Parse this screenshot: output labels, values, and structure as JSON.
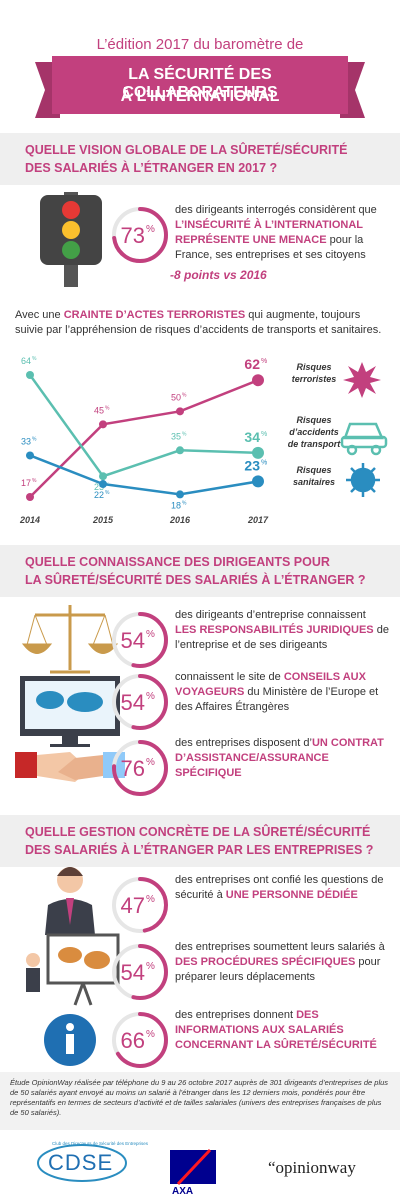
{
  "header": {
    "kicker": "L’édition 2017 du baromètre de",
    "title_line1": "LA SÉCURITÉ DES COLLABORATEURS",
    "title_line2": "À L’INTERNATIONAL"
  },
  "section1": {
    "heading_line1": "QUELLE VISION GLOBALE DE LA SÛRETÉ/SÉCURITÉ",
    "heading_line2": "DES SALARIÉS À L’ÉTRANGER EN 2017 ?",
    "stat": {
      "value": 73,
      "unit": "%",
      "text": [
        {
          "t": "des dirigeants interrogés considèrent que "
        },
        {
          "t": "L’INSÉCURITÉ À L’INTERNATIONAL REPRÉSENTE UNE MENACE",
          "em": true
        },
        {
          "t": " pour la France, ses entreprises et ses citoyens"
        }
      ]
    },
    "change": "-8 points vs 2016",
    "intro": [
      {
        "t": "Avec une "
      },
      {
        "t": "CRAINTE D’ACTES TERRORISTES",
        "em": true
      },
      {
        "t": " qui augmente, toujours suivie par l’appréhension de risques d’accidents de transports et sanitaires."
      }
    ]
  },
  "chart_data": {
    "type": "line",
    "categories": [
      "2014",
      "2015",
      "2016",
      "2017"
    ],
    "unit": "%",
    "series": [
      {
        "name": "Risques terroristes",
        "color": "#c2407e",
        "values": [
          17,
          45,
          50,
          62
        ]
      },
      {
        "name": "Risques d’accidents de transport",
        "color": "#5bbfb0",
        "values": [
          64,
          25,
          35,
          34
        ]
      },
      {
        "name": "Risques sanitaires",
        "color": "#2a8dc0",
        "values": [
          33,
          22,
          18,
          23
        ]
      }
    ]
  },
  "section2": {
    "heading_line1": "QUELLE CONNAISSANCE DES DIRIGEANTS POUR",
    "heading_line2": "LA SÛRETÉ/SÉCURITÉ DES SALARIÉS À L’ÉTRANGER ?",
    "stats": [
      {
        "value": 54,
        "unit": "%",
        "text": [
          {
            "t": "des dirigeants d’entreprise connaissent "
          },
          {
            "t": "LES RESPONSABILITÉS JURIDIQUES",
            "em": true
          },
          {
            "t": " de l’entreprise et de ses dirigeants"
          }
        ]
      },
      {
        "value": 54,
        "unit": "%",
        "text": [
          {
            "t": "connaissent le site de "
          },
          {
            "t": "CONSEILS AUX VOYAGEURS",
            "em": true
          },
          {
            "t": " du Ministère de l’Europe et des Affaires Étrangères"
          }
        ]
      },
      {
        "value": 76,
        "unit": "%",
        "text": [
          {
            "t": "des entreprises disposent d’"
          },
          {
            "t": "UN CONTRAT D’ASSISTANCE/ASSURANCE SPÉCIFIQUE",
            "em": true
          }
        ]
      }
    ]
  },
  "section3": {
    "heading_line1": "QUELLE GESTION CONCRÈTE DE LA SÛRETÉ/SÉCURITÉ",
    "heading_line2": "DES SALARIÉS À L’ÉTRANGER PAR LES ENTREPRISES ?",
    "stats": [
      {
        "value": 47,
        "unit": "%",
        "text": [
          {
            "t": "des entreprises ont confié les questions de sécurité à "
          },
          {
            "t": "UNE PERSONNE DÉDIÉE",
            "em": true
          }
        ]
      },
      {
        "value": 54,
        "unit": "%",
        "text": [
          {
            "t": "des entreprises soumettent leurs salariés à "
          },
          {
            "t": "DES PROCÉDURES SPÉCIFIQUES",
            "em": true
          },
          {
            "t": " pour préparer leurs déplacements"
          }
        ]
      },
      {
        "value": 66,
        "unit": "%",
        "text": [
          {
            "t": "des entreprises donnent "
          },
          {
            "t": "DES INFORMATIONS AUX SALARIÉS CONCERNANT LA SÛRETÉ/SÉCURITÉ",
            "em": true
          }
        ]
      }
    ]
  },
  "footer": {
    "note": "Étude OpinionWay réalisée par téléphone du 9 au 26 octobre 2017 auprès de 301 dirigeants d’entreprises de plus de 50 salariés ayant envoyé au moins un salarié à l’étranger dans les 12 derniers mois, pondérés pour être représentatifs en termes de secteurs d’activité et de tailles salariales (univers des entreprises françaises de plus de 50 salariés).",
    "logos": {
      "cdse_tagline": "Club des Directeurs de Sécurité des Entreprises",
      "cdse": "CDSE",
      "axa": "AXA",
      "opinionway": "“opinionway"
    }
  }
}
